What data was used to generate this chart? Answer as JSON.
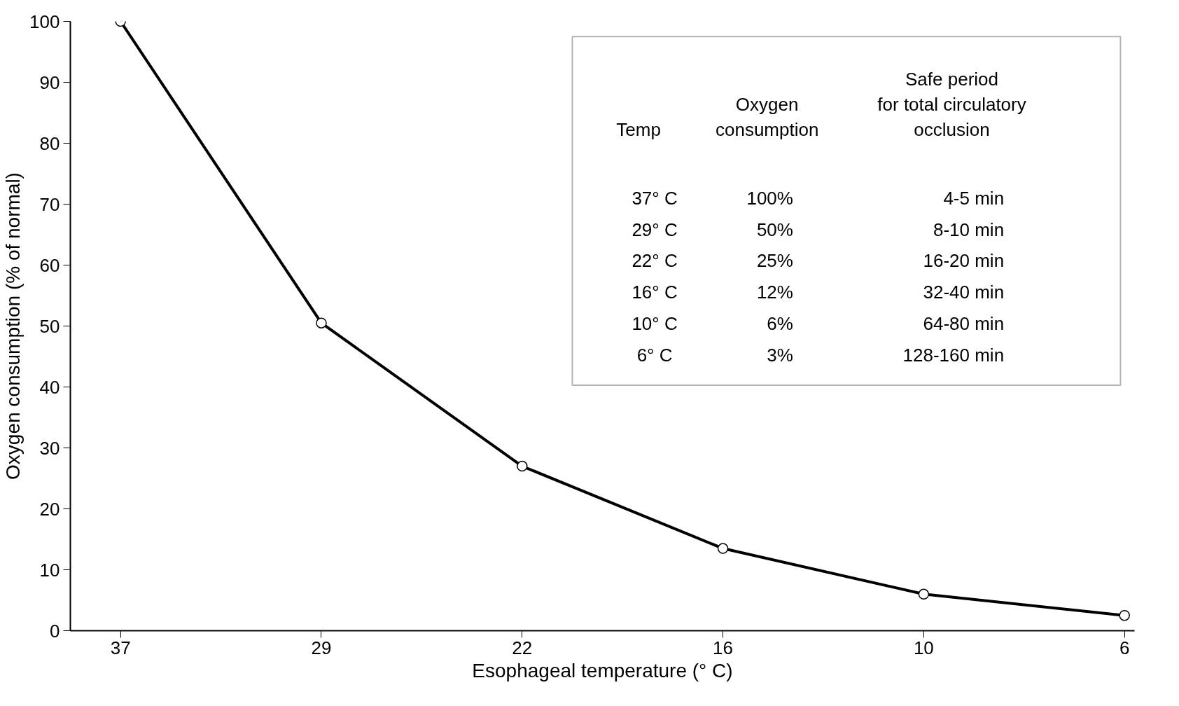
{
  "chart_data": {
    "type": "line",
    "xlabel": "Esophageal temperature (° C)",
    "ylabel": "Oxygen consumption (% of normal)",
    "categories": [
      "37",
      "29",
      "22",
      "16",
      "10",
      "6"
    ],
    "series": [
      {
        "color": "#000000",
        "values": [
          100,
          50.5,
          27,
          13.5,
          6,
          2.5
        ]
      }
    ],
    "ylim": [
      0,
      100
    ],
    "yticks": [
      0,
      10,
      20,
      30,
      40,
      50,
      60,
      70,
      80,
      90,
      100
    ],
    "grid": false,
    "marker": "circle",
    "line_style": "solid",
    "annotations": [
      "Temp",
      "Oxygen\nconsumption",
      "Safe period\nfor total circulatory\nocclusion",
      "37° C",
      "100%",
      "4-5 min",
      "29° C",
      "50%",
      "8-10 min",
      "22° C",
      "25%",
      "16-20 min",
      "16° C",
      "12%",
      "32-40 min",
      "10° C",
      "6%",
      "64-80 min",
      "6° C",
      "3%",
      "128-160 min"
    ]
  }
}
